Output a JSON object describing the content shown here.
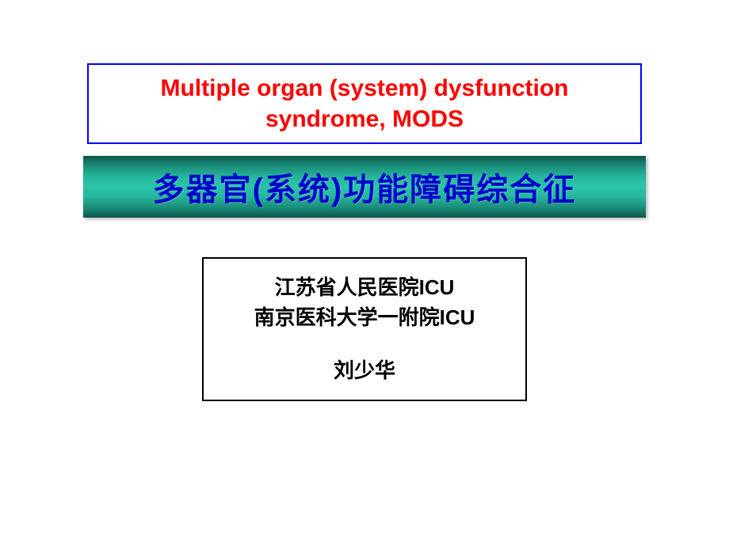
{
  "slide": {
    "background_color": "#ffffff"
  },
  "title_box": {
    "border_color": "#0000ff",
    "text_color": "#ff0000",
    "line1": "Multiple organ (system) dysfunction",
    "line2": "syndrome, MODS",
    "fontsize": 30
  },
  "banner": {
    "text": "多器官(系统)功能障碍综合征",
    "text_color": "#0000cc",
    "gradient_top": "#0d5548",
    "gradient_mid": "#2bc4a8",
    "gradient_bottom": "#0d5548",
    "fontsize": 40
  },
  "info_box": {
    "border_color": "#000000",
    "text_color": "#000000",
    "line1": "江苏省人民医院ICU",
    "line2": "南京医科大学一附院ICU",
    "author": "刘少华",
    "fontsize": 26
  }
}
